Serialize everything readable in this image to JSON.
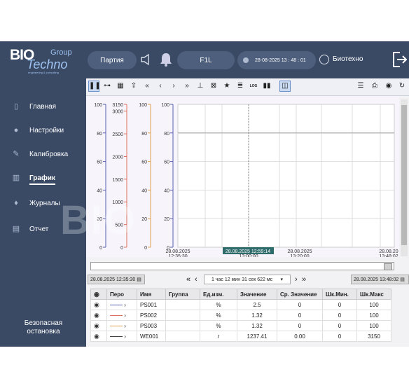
{
  "header": {
    "logo_big": "BIO",
    "logo_group": "Group",
    "logo_techno": "Techno",
    "logo_sub": "engineering & consulting",
    "batch_label": "Партия",
    "unit_label": "F1L",
    "datetime": "28-08-2025 13 : 48 : 01",
    "user": "Биотехно"
  },
  "sidebar": {
    "items": [
      {
        "label": "Главная",
        "icon": "phone-icon"
      },
      {
        "label": "Настройки",
        "icon": "gear-icon"
      },
      {
        "label": "Калибровка",
        "icon": "wrench-icon"
      },
      {
        "label": "График",
        "icon": "bar-chart-icon"
      },
      {
        "label": "Журналы",
        "icon": "bell-icon"
      },
      {
        "label": "Отчет",
        "icon": "document-icon"
      }
    ],
    "safe_stop": "Безопасная остановка"
  },
  "colors": {
    "bg": "#3a4a65",
    "ps001": "#5a5fb0",
    "ps002": "#e07060",
    "ps003": "#e0a050",
    "we001": "#444444",
    "cursor_label_bg": "#2e6b6b"
  },
  "chart_data": {
    "type": "line",
    "axes": [
      {
        "color": "#5a5fb0",
        "ticks": [
          "100",
          "80",
          "60",
          "40",
          "20",
          "0"
        ]
      },
      {
        "color": "#e07060",
        "ticks": [
          "3150",
          "3000",
          "2500",
          "2000",
          "1500",
          "1000",
          "500",
          "0"
        ]
      },
      {
        "color": "#e0a050",
        "ticks": [
          "100",
          "80",
          "60",
          "40",
          "20",
          "0"
        ]
      },
      {
        "color": "#5a5fb0",
        "ticks": [
          "100",
          "80",
          "60",
          "40",
          "20",
          "0"
        ]
      }
    ],
    "x_ticks": [
      {
        "date": "28.08.2025",
        "time": "12:35:30"
      },
      {
        "date": "",
        "time": "13:00:00"
      },
      {
        "date": "28.08.2025",
        "time": "13:20:00"
      },
      {
        "date": "28.08.20",
        "time": "13:48:02"
      }
    ],
    "cursor_label": "28.08.2025 12:59:14",
    "series": [],
    "grid": true
  },
  "nav": {
    "start": "28.08.2025 12:35:30",
    "end": "28.08.2025 13:48:02",
    "range": "1 час 12 мин 31 сек 622 мс"
  },
  "table": {
    "headers": [
      "",
      "Перо",
      "Имя",
      "Группа",
      "Ед.изм.",
      "Значение",
      "Ср. Значение",
      "Шк.Мин.",
      "Шк.Макс"
    ],
    "rows": [
      {
        "name": "PS001",
        "group": "",
        "unit": "%",
        "value": "2.5",
        "avg": "0",
        "min": "0",
        "max": "100",
        "color": "#5a5fb0"
      },
      {
        "name": "PS002",
        "group": "",
        "unit": "%",
        "value": "1.32",
        "avg": "0",
        "min": "0",
        "max": "100",
        "color": "#e07060"
      },
      {
        "name": "PS003",
        "group": "",
        "unit": "%",
        "value": "1.32",
        "avg": "0",
        "min": "0",
        "max": "100",
        "color": "#e0a050"
      },
      {
        "name": "WE001",
        "group": "",
        "unit": "г",
        "value": "1237.41",
        "avg": "0.00",
        "min": "0",
        "max": "3150",
        "color": "#444444"
      }
    ]
  }
}
